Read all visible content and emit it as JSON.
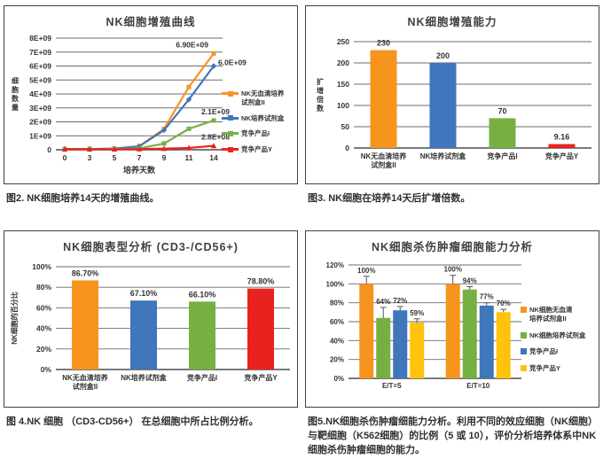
{
  "colors": {
    "orange": "#F7941E",
    "blue": "#4076BB",
    "green": "#76B043",
    "red": "#E8231F",
    "yellow": "#FFC30B",
    "grid": "#6b6b6b",
    "axis": "#4d4d4d",
    "title": "#3f3f3f",
    "text": "#333333"
  },
  "chart_data": [
    {
      "id": "nk-proliferation-curve",
      "type": "line",
      "title": "NK细胞增殖曲线",
      "xlabel": "培养天数",
      "ylabel": "细胞数量",
      "x": [
        0,
        3,
        5,
        7,
        9,
        11,
        14
      ],
      "ylim": [
        0,
        8000000000
      ],
      "ytick_labels": [
        "0",
        "1E+09",
        "2E+09",
        "3E+09",
        "4E+09",
        "5E+09",
        "6E+09",
        "7E+09",
        "8E+09"
      ],
      "grid": true,
      "legend_position": "right",
      "series": [
        {
          "name": "NK无血清培养试剂盒II",
          "display_lines": [
            "NK无血清培养",
            "试剂盒II"
          ],
          "color_key": "orange",
          "marker": "square",
          "values": [
            50000000,
            50000000,
            80000000,
            250000000,
            1500000000,
            4500000000,
            6900000000
          ],
          "end_label": "6.90E+09"
        },
        {
          "name": "NK培养试剂盒",
          "display_lines": [
            "NK培养试剂盒"
          ],
          "color_key": "blue",
          "marker": "diamond",
          "values": [
            50000000,
            50000000,
            80000000,
            250000000,
            1400000000,
            3600000000,
            6000000000
          ],
          "end_label": "6.0E+09"
        },
        {
          "name": "竞争产品I",
          "display_lines": [
            "竞争产品I"
          ],
          "color_key": "green",
          "marker": "square",
          "values": [
            40000000,
            40000000,
            50000000,
            100000000,
            450000000,
            1500000000,
            2100000000
          ],
          "end_label": "2.1E+09"
        },
        {
          "name": "竞争产品Y",
          "display_lines": [
            "竞争产品Y"
          ],
          "color_key": "red",
          "marker": "triangle",
          "values": [
            30000000,
            30000000,
            30000000,
            50000000,
            80000000,
            130000000,
            280000000
          ],
          "end_label": "2.8E+08"
        }
      ],
      "caption": "图2. NK细胞培养14天的增殖曲线。"
    },
    {
      "id": "nk-expansion-fold",
      "type": "bar",
      "title": "NK细胞增殖能力",
      "ylabel": "扩增倍数",
      "ylabel_style": "stacked",
      "categories": [
        [
          "NK无血清培养",
          "试剂盒II"
        ],
        [
          "NK培养试剂盒"
        ],
        [
          "竞争产品I"
        ],
        [
          "竞争产品Y"
        ]
      ],
      "values": [
        230,
        200,
        70,
        9.16
      ],
      "value_labels": [
        "230",
        "200",
        "70",
        "9.16"
      ],
      "bar_color_keys": [
        "orange",
        "blue",
        "green",
        "red"
      ],
      "ylim": [
        0,
        250
      ],
      "ytick_labels": [
        "0",
        "50",
        "100",
        "150",
        "200",
        "250"
      ],
      "grid": true,
      "caption": "图3. NK细胞在培养14天后扩增倍数。"
    },
    {
      "id": "nk-phenotype",
      "type": "bar",
      "title": "NK细胞表型分析 (CD3-/CD56+)",
      "ylabel": "NK细胞的百分比",
      "ylabel_style": "rotated",
      "categories": [
        [
          "NK无血清培养",
          "试剂盒II"
        ],
        [
          "NK培养试剂盒"
        ],
        [
          "竞争产品I"
        ],
        [
          "竞争产品Y"
        ]
      ],
      "values": [
        86.7,
        67.1,
        66.1,
        78.8
      ],
      "value_labels": [
        "86.70%",
        "67.10%",
        "66.10%",
        "78.80%"
      ],
      "bar_color_keys": [
        "orange",
        "blue",
        "green",
        "red"
      ],
      "ylim": [
        0,
        100
      ],
      "ytick_labels": [
        "0%",
        "20%",
        "40%",
        "60%",
        "80%",
        "100%"
      ],
      "grid": true,
      "caption": "图 4.NK 细胞 （CD3-CD56+） 在总细胞中所占比例分析。"
    },
    {
      "id": "nk-cytotoxicity",
      "type": "grouped_bar",
      "title": "NK细胞杀伤肿瘤细胞能力分析",
      "categories": [
        "E/T=5",
        "E/T=10"
      ],
      "ylim": [
        0,
        120
      ],
      "ytick_labels": [
        "0%",
        "20%",
        "40%",
        "60%",
        "80%",
        "100%",
        "120%"
      ],
      "grid": true,
      "legend_position": "right",
      "series": [
        {
          "name": "NK细胞无血清培养试剂盒II",
          "display_lines": [
            "NK细胞无血清",
            "培养试剂盒II"
          ],
          "color_key": "orange",
          "values": [
            100,
            100
          ],
          "errors": [
            8,
            9
          ],
          "labels": [
            "100%",
            "100%"
          ]
        },
        {
          "name": "NK细胞培养试剂盒",
          "display_lines": [
            "NK细胞培养试剂盒"
          ],
          "color_key": "green",
          "values": [
            64,
            94
          ],
          "errors": [
            11,
            3
          ],
          "labels": [
            "64%",
            "94%"
          ]
        },
        {
          "name": "竞争产品I",
          "display_lines": [
            "竞争产品I"
          ],
          "color_key": "blue",
          "values": [
            72,
            77
          ],
          "errors": [
            4,
            3
          ],
          "labels": [
            "72%",
            "77%"
          ]
        },
        {
          "name": "竞争产品Y",
          "display_lines": [
            "竞争产品Y"
          ],
          "color_key": "yellow",
          "values": [
            59,
            70
          ],
          "errors": [
            4,
            3
          ],
          "labels": [
            "59%",
            "70%"
          ]
        }
      ],
      "caption": "图5.NK细胞杀伤肿瘤细能力分析。利用不同的效应细胞（NK细胞）与靶细胞（K562细胞）的比例（5 或 10），评价分析培养体系中NK细胞杀伤肿瘤细胞的能力。"
    }
  ]
}
